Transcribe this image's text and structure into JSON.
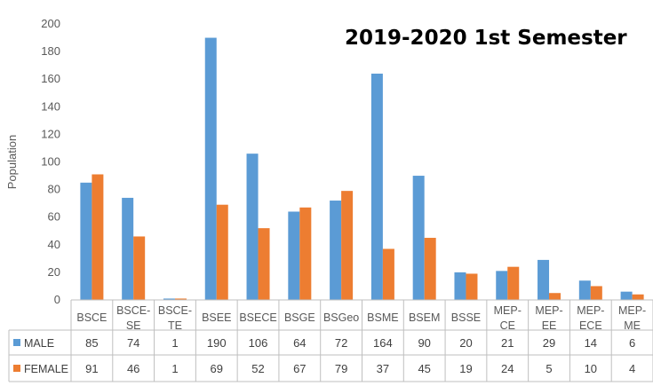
{
  "chart_data": {
    "type": "bar",
    "title": "2019-2020 1st Semester",
    "ylabel": "Population",
    "xlabel": "",
    "ylim": [
      0,
      200
    ],
    "yticks": [
      0,
      20,
      40,
      60,
      80,
      100,
      120,
      140,
      160,
      180,
      200
    ],
    "grid": false,
    "legend": "data-table",
    "categories": [
      [
        "BSCE"
      ],
      [
        "BSCE-",
        "SE"
      ],
      [
        "BSCE-",
        "TE"
      ],
      [
        "BSEE"
      ],
      [
        "BSECE"
      ],
      [
        "BSGE"
      ],
      [
        "BSGeo"
      ],
      [
        "BSME"
      ],
      [
        "BSEM"
      ],
      [
        "BSSE"
      ],
      [
        "MEP-",
        "CE"
      ],
      [
        "MEP-",
        "EE"
      ],
      [
        "MEP-",
        "ECE"
      ],
      [
        "MEP-",
        "ME"
      ]
    ],
    "series": [
      {
        "name": "MALE",
        "color": "#5B9BD5",
        "values": [
          85,
          74,
          1,
          190,
          106,
          64,
          72,
          164,
          90,
          20,
          21,
          29,
          14,
          6
        ]
      },
      {
        "name": "FEMALE",
        "color": "#ED7D31",
        "values": [
          91,
          46,
          1,
          69,
          52,
          67,
          79,
          37,
          45,
          19,
          24,
          5,
          10,
          4
        ]
      }
    ]
  }
}
